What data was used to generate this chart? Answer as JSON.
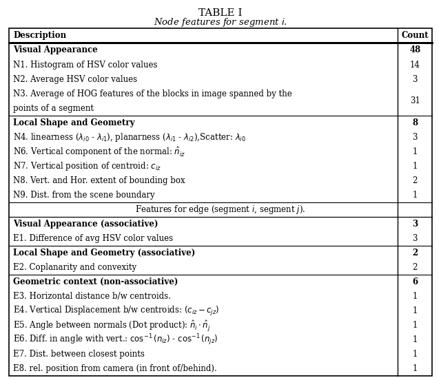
{
  "title": "TABLE I",
  "subtitle": "Node features for segment $i$.",
  "fig_width": 6.4,
  "fig_height": 5.52,
  "background": "#ffffff",
  "rows": [
    {
      "text": "Description",
      "count": "Count",
      "bold": false,
      "header": true,
      "separator": false,
      "center_text": false
    },
    {
      "text": "Visual Appearance",
      "count": "48",
      "bold": true,
      "header": false,
      "separator": false,
      "center_text": false
    },
    {
      "text": "N1. Histogram of HSV color values",
      "count": "14",
      "bold": false,
      "header": false,
      "separator": false,
      "center_text": false
    },
    {
      "text": "N2. Average HSV color values",
      "count": "3",
      "bold": false,
      "header": false,
      "separator": false,
      "center_text": false
    },
    {
      "text": "N3. Average of HOG features of the blocks in image spanned by the\npoints of a segment",
      "count": "31",
      "bold": false,
      "header": false,
      "separator": false,
      "center_text": false
    },
    {
      "text": "Local Shape and Geometry",
      "count": "8",
      "bold": true,
      "header": false,
      "separator": false,
      "center_text": false
    },
    {
      "text": "N4. linearness ($\\lambda_{i0}$ - $\\lambda_{i1}$), planarness ($\\lambda_{i1}$ - $\\lambda_{i2}$),Scatter: $\\lambda_{i0}$",
      "count": "3",
      "bold": false,
      "header": false,
      "separator": false,
      "center_text": false
    },
    {
      "text": "N6. Vertical component of the normal: $\\hat{n}_{iz}$",
      "count": "1",
      "bold": false,
      "header": false,
      "separator": false,
      "center_text": false
    },
    {
      "text": "N7. Vertical position of centroid: $c_{iz}$",
      "count": "1",
      "bold": false,
      "header": false,
      "separator": false,
      "center_text": false
    },
    {
      "text": "N8. Vert. and Hor. extent of bounding box",
      "count": "2",
      "bold": false,
      "header": false,
      "separator": false,
      "center_text": false
    },
    {
      "text": "N9. Dist. from the scene boundary",
      "count": "1",
      "bold": false,
      "header": false,
      "separator": false,
      "center_text": false
    },
    {
      "text": "Features for edge (segment $i$, segment $j$).",
      "count": "",
      "bold": false,
      "header": false,
      "separator": true,
      "center_text": true
    },
    {
      "text": "Visual Appearance (associative)",
      "count": "3",
      "bold": true,
      "header": false,
      "separator": false,
      "center_text": false
    },
    {
      "text": "E1. Difference of avg HSV color values",
      "count": "3",
      "bold": false,
      "header": false,
      "separator": false,
      "center_text": false
    },
    {
      "text": "Local Shape and Geometry (associative)",
      "count": "2",
      "bold": true,
      "header": false,
      "separator": false,
      "center_text": false
    },
    {
      "text": "E2. Coplanarity and convexity",
      "count": "2",
      "bold": false,
      "header": false,
      "separator": false,
      "center_text": false
    },
    {
      "text": "Geometric context (non-associative)",
      "count": "6",
      "bold": true,
      "header": false,
      "separator": false,
      "center_text": false
    },
    {
      "text": "E3. Horizontal distance b/w centroids.",
      "count": "1",
      "bold": false,
      "header": false,
      "separator": false,
      "center_text": false
    },
    {
      "text": "E4. Vertical Displacement b/w centroids: $(c_{iz} - c_{jz})$",
      "count": "1",
      "bold": false,
      "header": false,
      "separator": false,
      "center_text": false
    },
    {
      "text": "E5. Angle between normals (Dot product): $\\hat{n}_i \\cdot \\hat{n}_j$",
      "count": "1",
      "bold": false,
      "header": false,
      "separator": false,
      "center_text": false
    },
    {
      "text": "E6. Diff. in angle with vert.: $\\cos^{-1}(n_{iz})$ - $\\cos^{-1}(n_{jz})$",
      "count": "1",
      "bold": false,
      "header": false,
      "separator": false,
      "center_text": false
    },
    {
      "text": "E7. Dist. between closest points",
      "count": "1",
      "bold": false,
      "header": false,
      "separator": false,
      "center_text": false
    },
    {
      "text": "E8. rel. position from camera (in front of/behind).",
      "count": "1",
      "bold": false,
      "header": false,
      "separator": false,
      "center_text": false
    }
  ]
}
